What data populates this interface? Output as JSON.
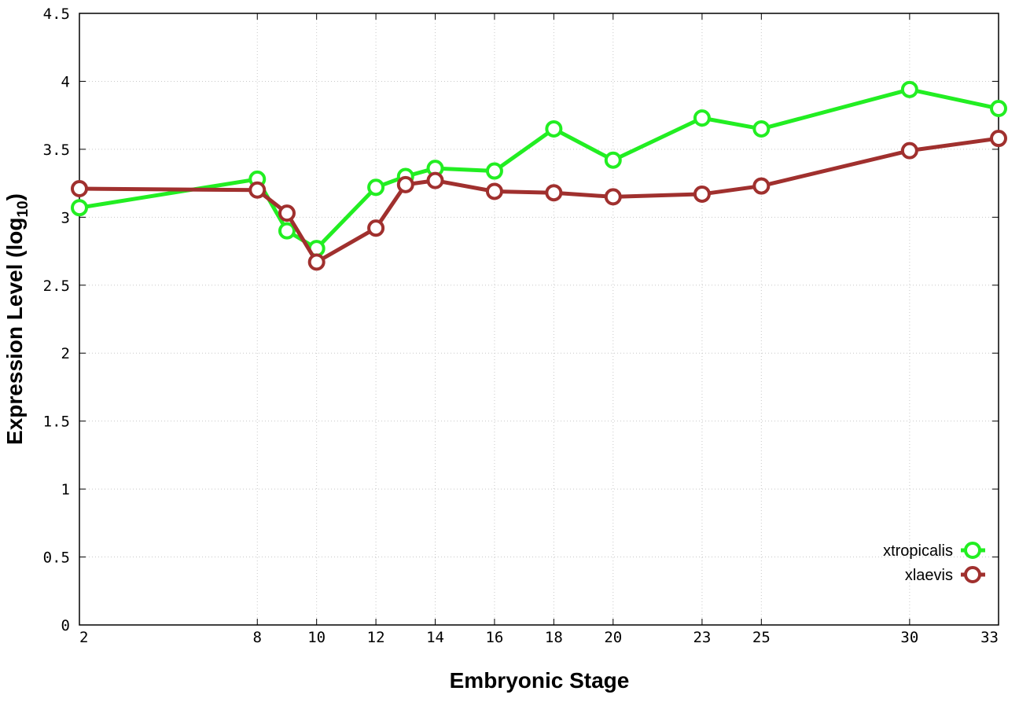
{
  "chart_data": {
    "type": "line",
    "xlabel": "Embryonic Stage",
    "ylabel": "Expression Level (log",
    "ylabel_sub": "10",
    "ylabel_close": ")",
    "x_scale": "categorical",
    "x_categories": [
      "2",
      "8",
      "9",
      "10",
      "12",
      "13",
      "14",
      "16",
      "18",
      "20",
      "23",
      "25",
      "30",
      "33"
    ],
    "x_tick_labels": [
      "2",
      "8",
      "10",
      "12",
      "14",
      "16",
      "18",
      "20",
      "23",
      "25",
      "30",
      "33"
    ],
    "ylim": [
      0,
      4.5
    ],
    "y_ticks": [
      "0",
      "0.5",
      "1",
      "1.5",
      "2",
      "2.5",
      "3",
      "3.5",
      "4",
      "4.5"
    ],
    "grid": true,
    "legend_position": "bottom-right",
    "series": [
      {
        "name": "xtropicalis",
        "color": "#22ee22",
        "x": [
          "2",
          "8",
          "9",
          "10",
          "12",
          "13",
          "14",
          "16",
          "18",
          "20",
          "23",
          "25",
          "30",
          "33"
        ],
        "values": [
          3.07,
          3.28,
          2.9,
          2.77,
          3.22,
          3.3,
          3.36,
          3.34,
          3.65,
          3.42,
          3.73,
          3.65,
          3.94,
          3.8
        ]
      },
      {
        "name": "xlaevis",
        "color": "#a0302e",
        "x": [
          "2",
          "8",
          "9",
          "10",
          "12",
          "13",
          "14",
          "16",
          "18",
          "20",
          "23",
          "25",
          "30",
          "33"
        ],
        "values": [
          3.21,
          3.2,
          3.03,
          2.67,
          2.92,
          3.24,
          3.27,
          3.19,
          3.18,
          3.15,
          3.17,
          3.23,
          3.49,
          3.58
        ]
      }
    ]
  }
}
